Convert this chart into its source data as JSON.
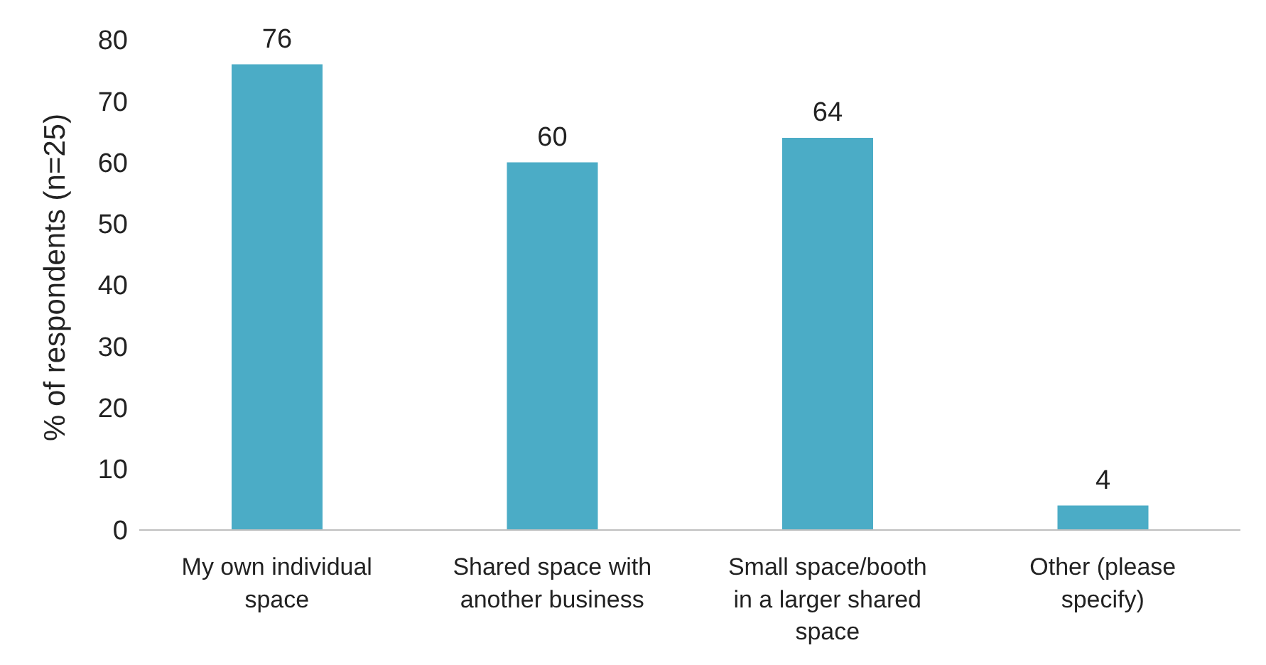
{
  "chart_data": {
    "type": "bar",
    "ylabel": "% of respondents (n=25)",
    "categories": [
      "My own individual space",
      "Shared space with another business",
      "Small space/booth in a larger shared space",
      "Other (please specify)"
    ],
    "values": [
      76,
      60,
      64,
      4
    ],
    "color": "#4bacc6",
    "ylim": [
      0,
      80
    ],
    "yticks": [
      0,
      10,
      20,
      30,
      40,
      50,
      60,
      70,
      80
    ],
    "grid": false,
    "data_labels": true
  }
}
